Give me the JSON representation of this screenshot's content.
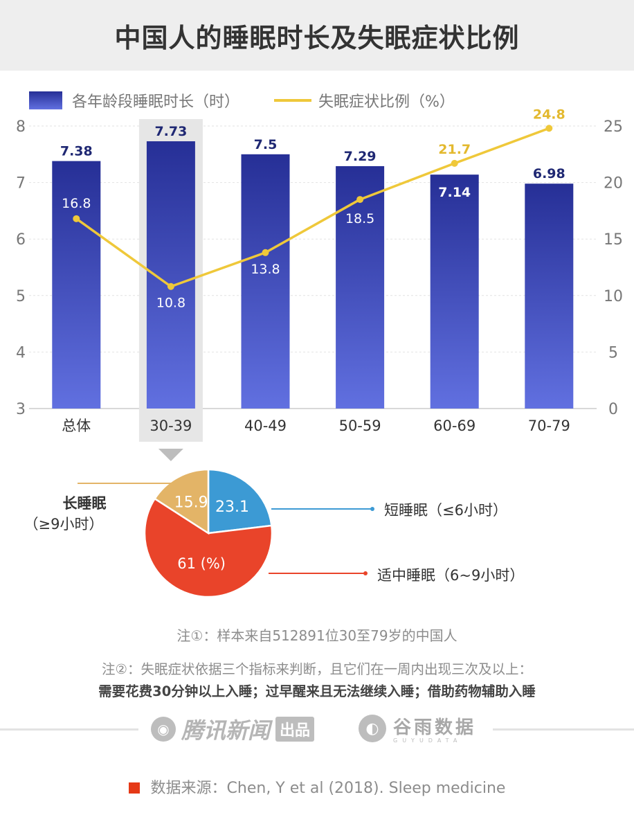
{
  "title": "中国人的睡眠时长及失眠症状比例",
  "legend": {
    "bar_label": "各年龄段睡眠时长（时）",
    "line_label": "失眠症状比例（%）"
  },
  "colors": {
    "bar_top": "#262f96",
    "bar_bottom": "#6170e0",
    "line": "#efc83a",
    "line_label": "#e3b92f",
    "pie_short": "#3c9ad4",
    "pie_medium": "#e9442a",
    "pie_long": "#e3b467",
    "highlight": "#e6e6e6"
  },
  "chart_data": [
    {
      "type": "bar",
      "categories": [
        "总体",
        "30-39",
        "40-49",
        "50-59",
        "60-69",
        "70-79"
      ],
      "series": [
        {
          "name": "各年龄段睡眠时长（时）",
          "axis": "left",
          "values": [
            7.38,
            7.73,
            7.5,
            7.29,
            7.14,
            6.98
          ]
        },
        {
          "name": "失眠症状比例（%）",
          "axis": "right",
          "type": "line",
          "values": [
            16.8,
            10.8,
            13.8,
            18.5,
            21.7,
            24.8
          ]
        }
      ],
      "ylim_left": [
        3,
        8
      ],
      "yticks_left": [
        "3",
        "4",
        "5",
        "6",
        "7",
        "8"
      ],
      "ylim_right": [
        0,
        25
      ],
      "yticks_right": [
        "0",
        "5",
        "10",
        "15",
        "20",
        "25"
      ],
      "highlight_category": "30-39"
    },
    {
      "type": "pie",
      "segment_for": "30-39",
      "slices": [
        {
          "name": "短睡眠（≤6小时）",
          "value": 23.1,
          "label": "23.1"
        },
        {
          "name": "适中睡眠（6~9小时）",
          "value": 61,
          "label": "61 (%)"
        },
        {
          "name": "长睡眠（≥9小时）",
          "value": 15.9,
          "label": "15.9"
        }
      ]
    }
  ],
  "pie_labels": {
    "short": "短睡眠（≤6小时）",
    "medium": "适中睡眠（6~9小时）",
    "long_line1": "长睡眠",
    "long_line2": "（≥9小时）"
  },
  "notes": {
    "note1": "注①：样本来自512891位30至79岁的中国人",
    "note2": "注②：失眠症状依据三个指标来判断，且它们在一周内出现三次及以上：",
    "note3": "需要花费30分钟以上入睡；过早醒来且无法继续入睡；借助药物辅助入睡"
  },
  "brands": {
    "tencent": "腾讯新闻",
    "tencent_tag": "出品",
    "guyu": "谷雨数据",
    "guyu_sub": "GUYUDATA"
  },
  "source": "数据来源：Chen, Y et al (2018). Sleep medicine"
}
